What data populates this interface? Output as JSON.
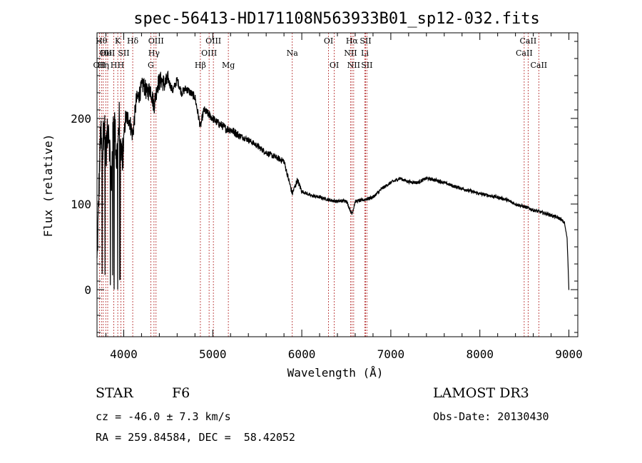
{
  "chart_data": {
    "type": "line",
    "title": "spec-56413-HD171108N563933B01_sp12-032.fits",
    "xlabel": "Wavelength (Å)",
    "ylabel": "Flux (relative)",
    "xlim": [
      3700,
      9100
    ],
    "ylim": [
      -55,
      300
    ],
    "xticks": [
      4000,
      5000,
      6000,
      7000,
      8000,
      9000
    ],
    "yticks": [
      0,
      100,
      200
    ],
    "xtick_labels": [
      "4000",
      "5000",
      "6000",
      "7000",
      "8000",
      "9000"
    ],
    "ytick_labels": [
      "0",
      "100",
      "200"
    ],
    "series": [
      {
        "name": "flux",
        "x": [
          3700,
          3720,
          3740,
          3760,
          3780,
          3800,
          3830,
          3860,
          3890,
          3920,
          3950,
          3968,
          3990,
          4020,
          4060,
          4101,
          4140,
          4180,
          4220,
          4260,
          4300,
          4340,
          4380,
          4420,
          4460,
          4500,
          4550,
          4600,
          4650,
          4700,
          4750,
          4800,
          4861,
          4900,
          4950,
          5000,
          5050,
          5100,
          5150,
          5200,
          5300,
          5400,
          5500,
          5600,
          5700,
          5800,
          5893,
          5950,
          6000,
          6100,
          6200,
          6300,
          6400,
          6500,
          6563,
          6600,
          6700,
          6800,
          6900,
          7000,
          7100,
          7200,
          7300,
          7400,
          7500,
          7600,
          7700,
          7800,
          7900,
          8000,
          8100,
          8200,
          8300,
          8400,
          8500,
          8600,
          8700,
          8800,
          8900,
          8950,
          8980,
          9000
        ],
        "values": [
          30,
          110,
          185,
          150,
          205,
          160,
          195,
          125,
          210,
          150,
          200,
          150,
          160,
          200,
          200,
          180,
          220,
          230,
          240,
          230,
          235,
          215,
          240,
          245,
          240,
          245,
          232,
          245,
          230,
          235,
          230,
          225,
          190,
          210,
          205,
          200,
          195,
          192,
          188,
          187,
          180,
          175,
          168,
          160,
          155,
          150,
          112,
          128,
          115,
          110,
          108,
          105,
          103,
          104,
          88,
          103,
          105,
          108,
          118,
          125,
          130,
          126,
          125,
          130,
          128,
          125,
          121,
          118,
          115,
          112,
          110,
          108,
          105,
          100,
          97,
          93,
          90,
          87,
          83,
          78,
          60,
          0
        ]
      }
    ],
    "lines": [
      {
        "wl": 3727,
        "label": "OII",
        "row": 2
      },
      {
        "wl": 3750,
        "label": "Hθ",
        "row": 0
      },
      {
        "wl": 3770,
        "label": "Hη",
        "row": 2
      },
      {
        "wl": 3798,
        "label": "OII",
        "row": 1
      },
      {
        "wl": 3820,
        "label": "HeI",
        "row": 1
      },
      {
        "wl": 3889,
        "label": "H",
        "row": 2
      },
      {
        "wl": 3933,
        "label": "K",
        "row": 0
      },
      {
        "wl": 3968,
        "label": "H",
        "row": 2
      },
      {
        "wl": 4000,
        "label": "SII",
        "row": 1
      },
      {
        "wl": 4101,
        "label": "Hδ",
        "row": 0
      },
      {
        "wl": 4304,
        "label": "G",
        "row": 2
      },
      {
        "wl": 4340,
        "label": "Hγ",
        "row": 1
      },
      {
        "wl": 4363,
        "label": "OIII",
        "row": 0
      },
      {
        "wl": 4861,
        "label": "Hβ",
        "row": 2
      },
      {
        "wl": 4959,
        "label": "OIII",
        "row": 1
      },
      {
        "wl": 5007,
        "label": "OIII",
        "row": 0
      },
      {
        "wl": 5175,
        "label": "Mg",
        "row": 2
      },
      {
        "wl": 5893,
        "label": "Na",
        "row": 1
      },
      {
        "wl": 6300,
        "label": "OI",
        "row": 0
      },
      {
        "wl": 6364,
        "label": "OI",
        "row": 2
      },
      {
        "wl": 6548,
        "label": "NII",
        "row": 1
      },
      {
        "wl": 6563,
        "label": "Hα",
        "row": 0
      },
      {
        "wl": 6583,
        "label": "NII",
        "row": 2
      },
      {
        "wl": 6708,
        "label": "Li",
        "row": 1
      },
      {
        "wl": 6716,
        "label": "SII",
        "row": 0
      },
      {
        "wl": 6731,
        "label": "SII",
        "row": 2
      },
      {
        "wl": 8498,
        "label": "CaII",
        "row": 1
      },
      {
        "wl": 8542,
        "label": "CaII",
        "row": 0
      },
      {
        "wl": 8662,
        "label": "CaII",
        "row": 2
      }
    ]
  },
  "info": {
    "object_class": "STAR",
    "subclass": "F6",
    "survey": "LAMOST DR3",
    "cz": "cz = -46.0 ± 7.3 km/s",
    "obs_date": "Obs-Date: 20130430",
    "coords": "RA = 259.84584, DEC =  58.42052"
  }
}
